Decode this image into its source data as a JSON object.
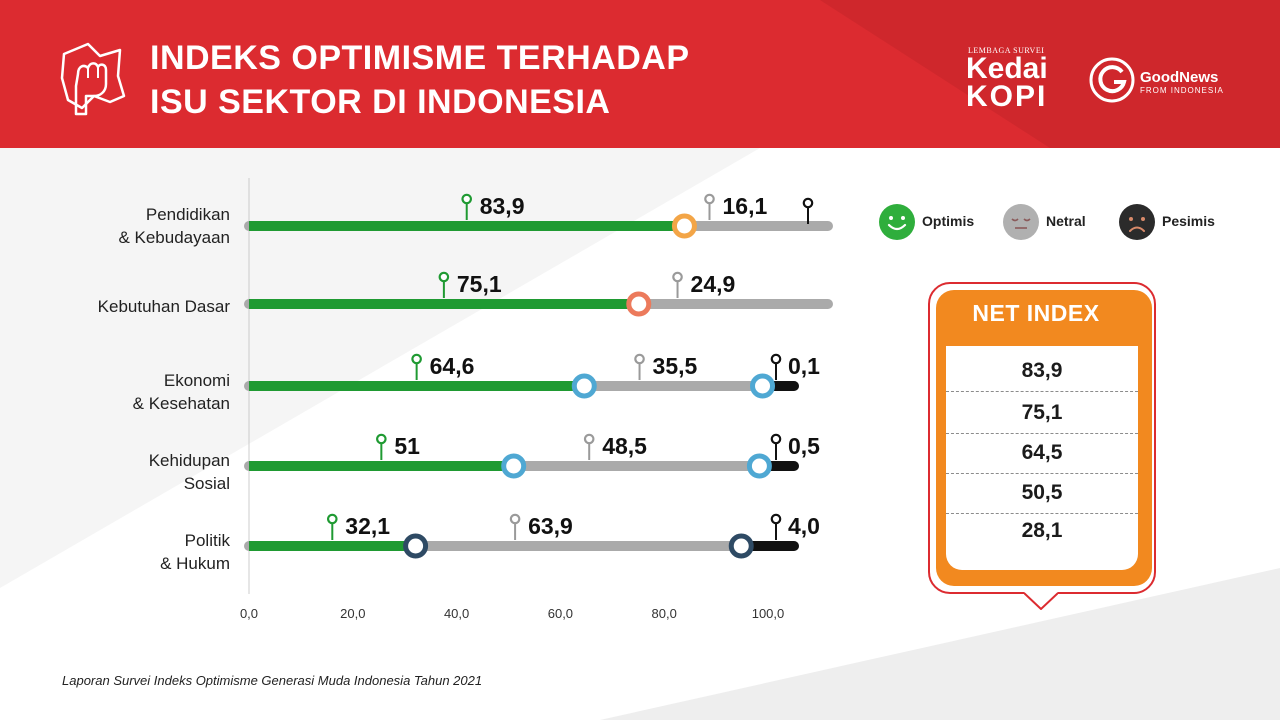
{
  "header": {
    "title_line1": "INDEKS OPTIMISME TERHADAP",
    "title_line2": "ISU SEKTOR DI INDONESIA",
    "brand_kedai_small": "LEMBAGA SURVEI",
    "brand_kedai_line1": "Kedai",
    "brand_kedai_line2": "KOPI",
    "brand_gn_line1": "GoodNews",
    "brand_gn_line2": "FROM INDONESIA"
  },
  "colors": {
    "header_red": "#dc2b30",
    "optimis": "#1f9a32",
    "netral": "#aaaaaa",
    "pesimis": "#111111",
    "net_index_orange": "#f2891f"
  },
  "legend": {
    "optimis": "Optimis",
    "netral": "Netral",
    "pesimis": "Pesimis"
  },
  "net_index": {
    "title": "NET INDEX",
    "values": [
      "83,9",
      "75,1",
      "64,5",
      "50,5",
      "28,1"
    ]
  },
  "footnote": "Laporan Survei Indeks Optimisme Generasi Muda Indonesia Tahun 2021",
  "chart_data": {
    "type": "bar",
    "stacked": true,
    "orientation": "horizontal",
    "categories": [
      [
        "Pendidikan",
        "& Kebudayaan"
      ],
      [
        "Kebutuhan Dasar"
      ],
      [
        "Ekonomi",
        "& Kesehatan"
      ],
      [
        "Kehidupan",
        "Sosial"
      ],
      [
        "Politik",
        "& Hukum"
      ]
    ],
    "series": [
      {
        "name": "Optimis",
        "values": [
          83.9,
          75.1,
          64.6,
          51,
          32.1
        ],
        "labels": [
          "83,9",
          "75,1",
          "64,6",
          "51",
          "32,1"
        ]
      },
      {
        "name": "Netral",
        "values": [
          16.1,
          24.9,
          35.5,
          48.5,
          63.9
        ],
        "labels": [
          "16,1",
          "24,9",
          "35,5",
          "48,5",
          "63,9"
        ]
      },
      {
        "name": "Pesimis",
        "values": [
          0,
          0,
          0.1,
          0.5,
          4.0
        ],
        "labels": [
          "",
          "",
          "0,1",
          "0,5",
          "4,0"
        ]
      }
    ],
    "marker_colors": [
      "#f3a547",
      "#ec7a5c",
      "#4fa8d3",
      "#4fa8d3",
      "#2e4a64"
    ],
    "xlim": [
      0,
      100
    ],
    "xticks": [
      "0,0",
      "20,0",
      "40,0",
      "60,0",
      "80,0",
      "100,0"
    ],
    "legend_position": "top-right"
  }
}
